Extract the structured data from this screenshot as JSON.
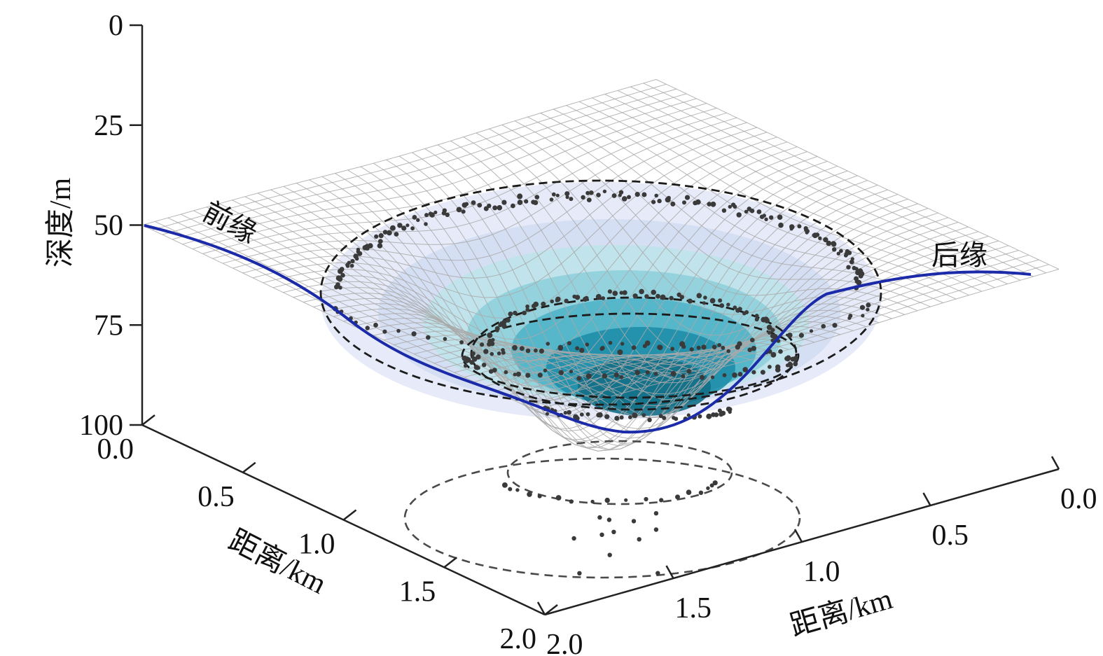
{
  "chart_data": {
    "type": "surface3d",
    "z_axis": {
      "label": "深度/m",
      "ticks": [
        "0",
        "25",
        "50",
        "75",
        "100"
      ],
      "range": [
        0,
        100
      ]
    },
    "x_axis_left": {
      "label": "距离/km",
      "ticks": [
        "0.0",
        "0.5",
        "1.0",
        "1.5",
        "2.0"
      ],
      "range": [
        0.0,
        2.0
      ]
    },
    "x_axis_right": {
      "label": "距离/km",
      "ticks": [
        "0.0",
        "0.5",
        "1.0",
        "1.5",
        "2.0"
      ],
      "range": [
        0.0,
        2.0
      ]
    },
    "annotations": {
      "leading_edge": "前缘",
      "trailing_edge": "后缘"
    },
    "surface": {
      "flat_depth_m": 50,
      "max_depth_m": 100,
      "depression_center_km": [
        1.0,
        1.0
      ]
    },
    "colors": {
      "profile_line": "#1a2aa8",
      "contour_fills": [
        "#e4e8f7",
        "#d3def2",
        "#bfe3ea",
        "#8fd0dd",
        "#4fb2c8",
        "#1f8ea9",
        "#136f86"
      ],
      "mesh": "#a9a9a9",
      "dashed_contours": "#1c1c1c"
    }
  }
}
